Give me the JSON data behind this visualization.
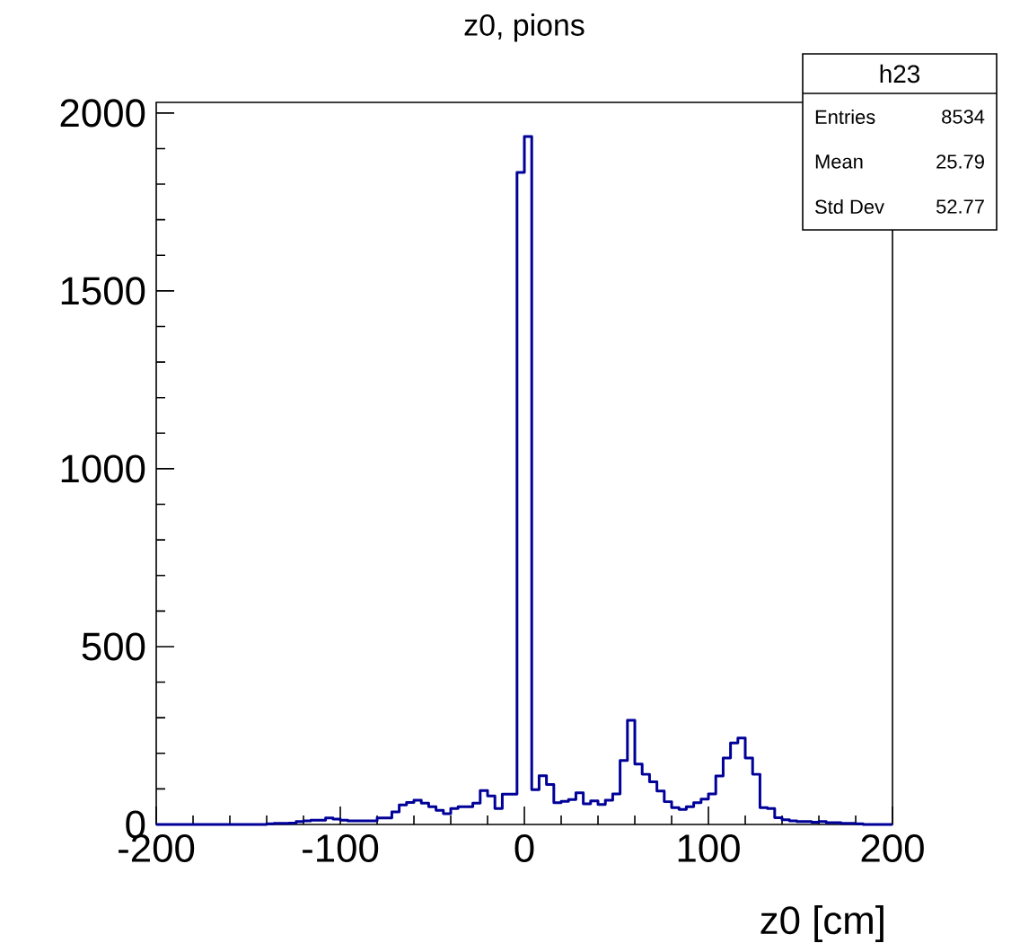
{
  "chart_data": {
    "type": "histogram",
    "title": "z0, pions",
    "xlabel": "z0 [cm]",
    "bins": [
      -200,
      -196,
      -192,
      -188,
      -184,
      -180,
      -176,
      -172,
      -168,
      -164,
      -160,
      -156,
      -152,
      -148,
      -144,
      -140,
      -136,
      -132,
      -128,
      -124,
      -120,
      -116,
      -112,
      -108,
      -104,
      -100,
      -96,
      -92,
      -88,
      -84,
      -80,
      -76,
      -72,
      -68,
      -64,
      -60,
      -56,
      -52,
      -48,
      -44,
      -40,
      -36,
      -32,
      -28,
      -24,
      -20,
      -16,
      -12,
      -8,
      -4,
      0,
      4,
      8,
      12,
      16,
      20,
      24,
      28,
      32,
      36,
      40,
      44,
      48,
      52,
      56,
      60,
      64,
      68,
      72,
      76,
      80,
      84,
      88,
      92,
      96,
      100,
      104,
      108,
      112,
      116,
      120,
      124,
      128,
      132,
      136,
      140,
      144,
      148,
      152,
      156,
      160,
      164,
      168,
      172,
      176,
      180,
      184,
      188,
      192,
      196,
      200
    ],
    "values": [
      0,
      0,
      0,
      0,
      0,
      0,
      0,
      0,
      0,
      0,
      0,
      0,
      0,
      0,
      0,
      2,
      3,
      3,
      4,
      8,
      10,
      12,
      12,
      18,
      15,
      12,
      10,
      10,
      10,
      10,
      18,
      18,
      35,
      55,
      62,
      68,
      60,
      50,
      40,
      30,
      45,
      50,
      50,
      60,
      95,
      80,
      45,
      85,
      85,
      1833,
      1934,
      98,
      137,
      112,
      61,
      65,
      70,
      89,
      58,
      66,
      56,
      68,
      86,
      180,
      293,
      170,
      141,
      120,
      94,
      64,
      47,
      42,
      50,
      61,
      71,
      86,
      136,
      187,
      229,
      243,
      187,
      141,
      47,
      45,
      19,
      13,
      10,
      8,
      8,
      6,
      8,
      5,
      5,
      3,
      3,
      2,
      0,
      0,
      0,
      0
    ],
    "color": "#000099",
    "xlim": [
      -200,
      200
    ],
    "xticks": [
      -200,
      -100,
      0,
      100,
      200
    ],
    "ylim": [
      0,
      2030
    ],
    "yticks": [
      0,
      500,
      1000,
      1500,
      2000
    ],
    "annotations": [
      "h23",
      "Entries",
      "8534",
      "Mean",
      "25.79",
      "Std Dev",
      "52.77"
    ]
  }
}
